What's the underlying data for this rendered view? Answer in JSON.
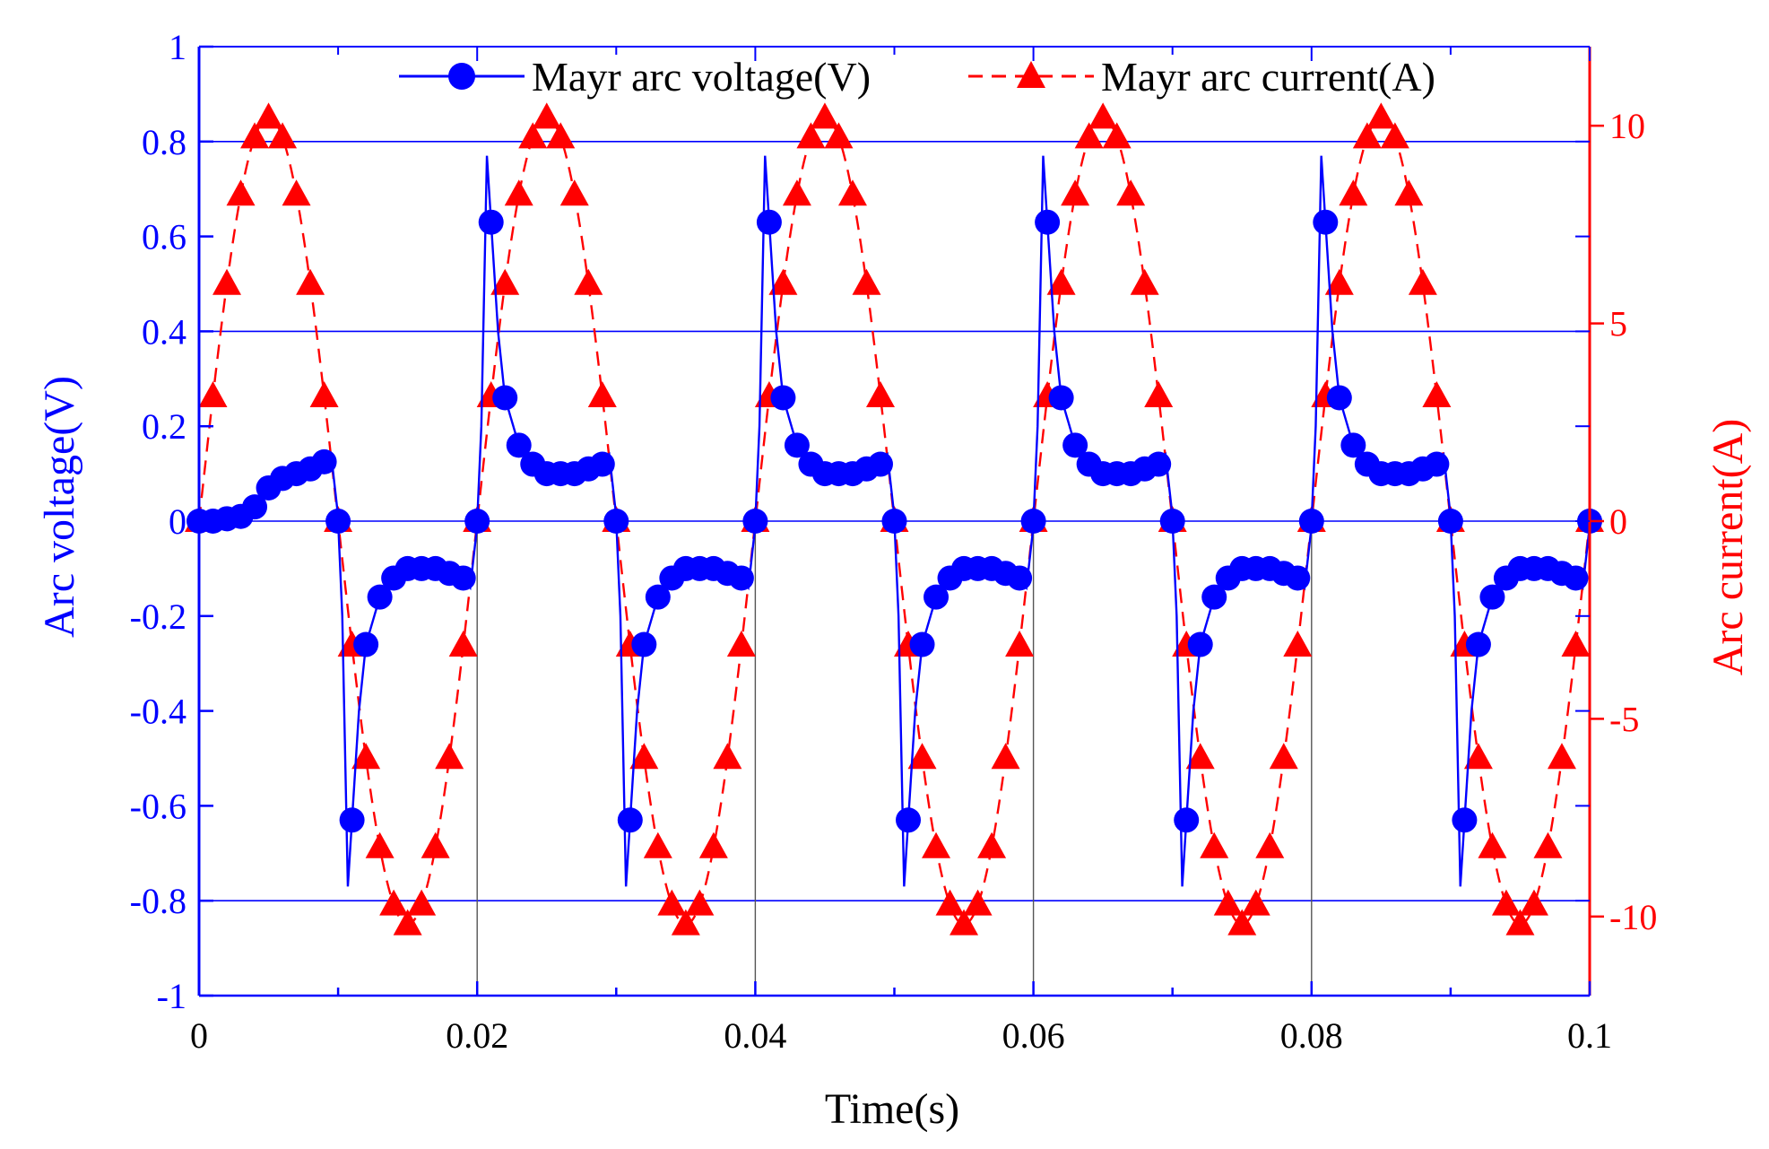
{
  "chart_data": {
    "type": "line",
    "xlabel": "Time(s)",
    "ylabel_left": "Arc voltage(V)",
    "ylabel_right": "Arc current(A)",
    "xlim": [
      0,
      0.1
    ],
    "ylim_left": [
      -1,
      1
    ],
    "ylim_right": [
      -12,
      12
    ],
    "x_ticks": [
      0,
      0.02,
      0.04,
      0.06,
      0.08,
      0.1
    ],
    "x_tick_labels": [
      "0",
      "0.02",
      "0.04",
      "0.06",
      "0.08",
      "0.1"
    ],
    "y_left_ticks": [
      1,
      0.8,
      0.6,
      0.4,
      0.2,
      0,
      -0.2,
      -0.4,
      -0.6,
      -0.8,
      -1
    ],
    "y_left_tick_labels": [
      "1",
      "0.8",
      "0.6",
      "0.4",
      "0.2",
      "0",
      "-0.2",
      "-0.4",
      "-0.6",
      "-0.8",
      "-1"
    ],
    "y_right_ticks": [
      10,
      5,
      0,
      -5,
      -10
    ],
    "y_right_tick_labels": [
      "10",
      "5",
      "0",
      "-5",
      "-10"
    ],
    "left_gridlines": [
      0.8,
      0.4,
      0,
      -0.8
    ],
    "grid_line_color": "#0000ff",
    "legend_position": "top",
    "series": [
      {
        "name": "Mayr arc voltage(V)",
        "axis": "left",
        "color": "#0000ff",
        "marker": "circle",
        "line_style": "solid",
        "frequency_hz": 50,
        "first_half_cycle": {
          "t": [
            0,
            0.001,
            0.002,
            0.003,
            0.004,
            0.005,
            0.006,
            0.007,
            0.008,
            0.009,
            0.0095,
            0.01
          ],
          "v": [
            0,
            0,
            0.005,
            0.01,
            0.03,
            0.07,
            0.09,
            0.1,
            0.11,
            0.125,
            0.14,
            0.01
          ]
        },
        "steady_half_cycle_offset": {
          "dt": [
            0,
            0.0003,
            0.0007,
            0.001,
            0.0015,
            0.002,
            0.003,
            0.004,
            0.005,
            0.006,
            0.007,
            0.008,
            0.009,
            0.0095,
            0.01
          ],
          "v": [
            0,
            0.2,
            0.77,
            0.63,
            0.4,
            0.26,
            0.16,
            0.12,
            0.1,
            0.1,
            0.1,
            0.11,
            0.12,
            0.14,
            0.01
          ]
        }
      },
      {
        "name": "Mayr arc current(A)",
        "axis": "right",
        "color": "#ff0000",
        "marker": "triangle",
        "line_style": "dashed",
        "amplitude": 10.2,
        "frequency_hz": 50
      }
    ]
  }
}
